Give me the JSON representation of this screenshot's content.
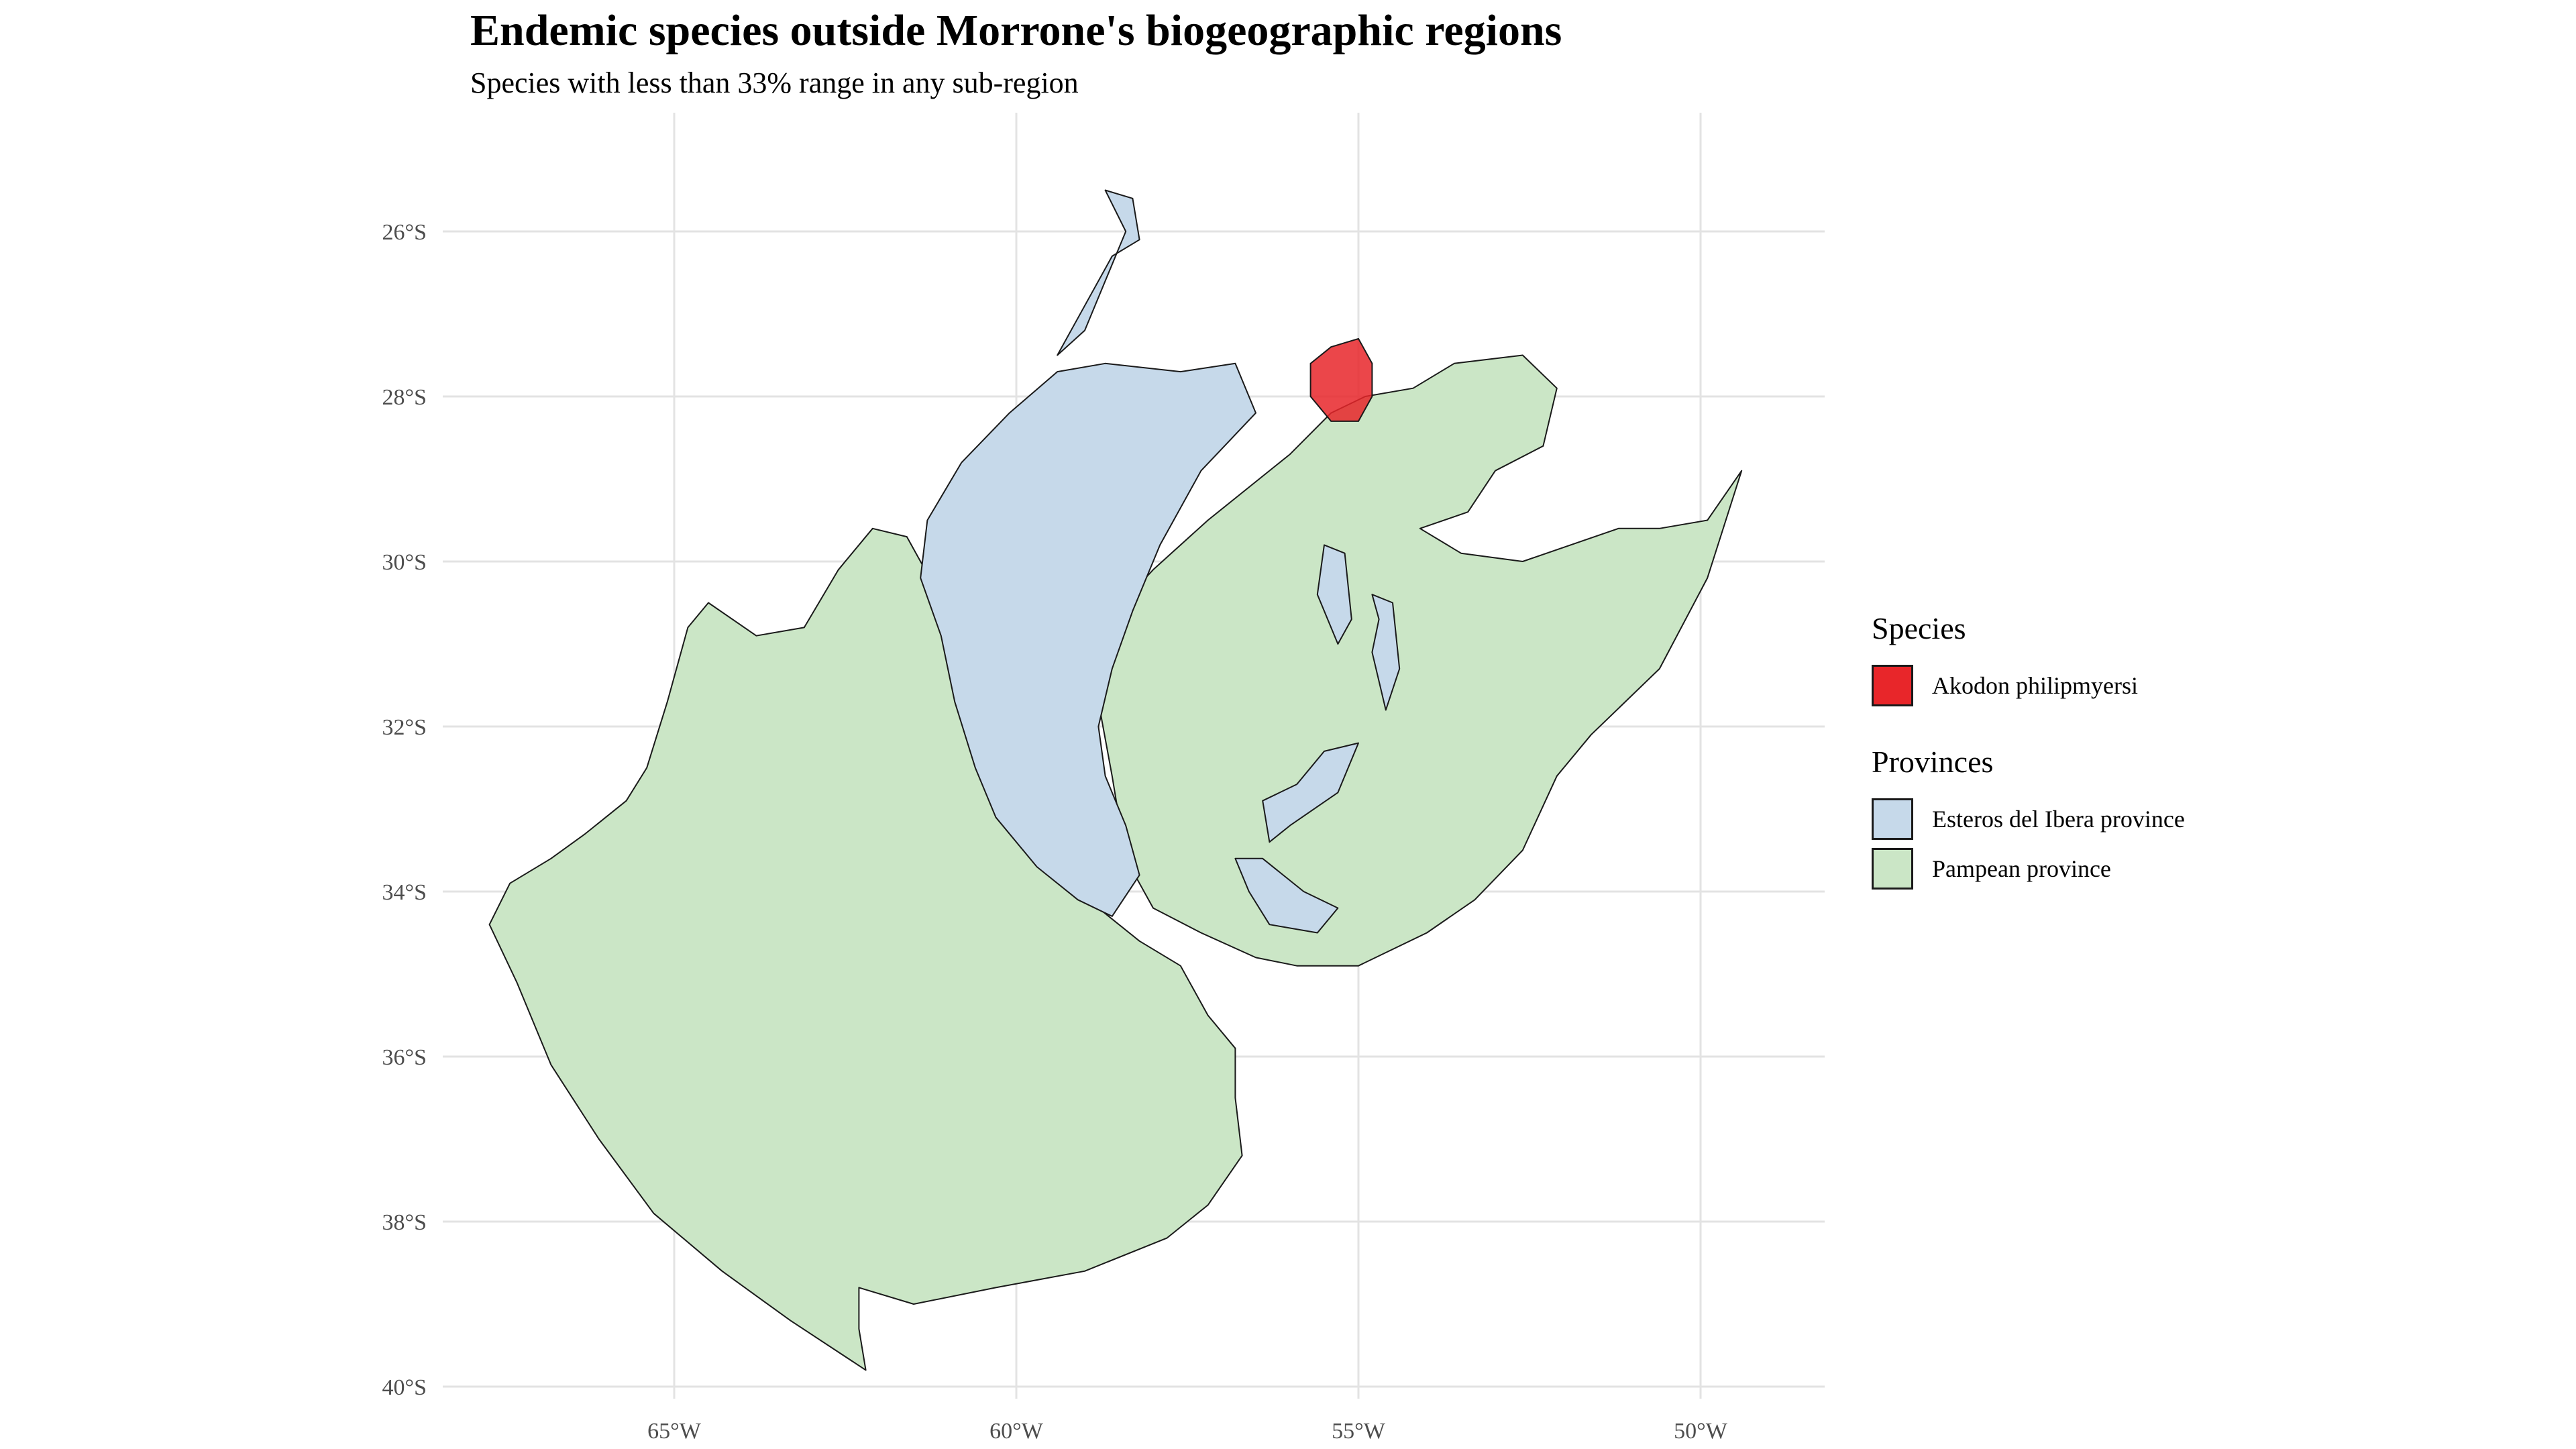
{
  "title": "Endemic species outside Morrone's biogeographic regions",
  "subtitle": "Species with less than 33% range in any sub-region",
  "colors": {
    "species_fill": "#e8262a",
    "ibera_fill": "#c6d9ea",
    "pampean_fill": "#cbe6c6",
    "outline": "#1a1a1a",
    "grid": "#e3e3e3",
    "tick_text": "#4d4d4d"
  },
  "legend": {
    "species_title": "Species",
    "species_items": [
      {
        "label": "Akodon philipmyersi",
        "color": "#e8262a"
      }
    ],
    "provinces_title": "Provinces",
    "provinces_items": [
      {
        "label": "Esteros del Ibera province",
        "color": "#c6d9ea"
      },
      {
        "label": "Pampean province",
        "color": "#cbe6c6"
      }
    ]
  },
  "map": {
    "projection": "equirectangular",
    "lon_range": [
      -68,
      -48.3
    ],
    "lat_range": [
      -40.3,
      -24.6
    ],
    "lon_ticks": [
      {
        "value": -65,
        "label": "65°W"
      },
      {
        "value": -60,
        "label": "60°W"
      },
      {
        "value": -55,
        "label": "55°W"
      },
      {
        "value": -50,
        "label": "50°W"
      }
    ],
    "lat_ticks": [
      {
        "value": -26,
        "label": "26°S"
      },
      {
        "value": -28,
        "label": "28°S"
      },
      {
        "value": -30,
        "label": "30°S"
      },
      {
        "value": -32,
        "label": "32°S"
      },
      {
        "value": -34,
        "label": "34°S"
      },
      {
        "value": -36,
        "label": "36°S"
      },
      {
        "value": -38,
        "label": "38°S"
      },
      {
        "value": -40,
        "label": "40°S"
      }
    ],
    "grid": true
  },
  "chart_data": {
    "type": "map",
    "title": "Endemic species outside Morrone's biogeographic regions",
    "subtitle": "Species with less than 33% range in any sub-region",
    "legend_position": "right",
    "layers": [
      {
        "name": "Pampean province",
        "kind": "province",
        "color": "#cbe6c6",
        "polygons": [
          [
            [
              -62.1,
              -29.6
            ],
            [
              -61.6,
              -29.7
            ],
            [
              -61.2,
              -30.3
            ],
            [
              -60.9,
              -30.9
            ],
            [
              -60.8,
              -31.5
            ],
            [
              -60.5,
              -32.3
            ],
            [
              -60.2,
              -32.9
            ],
            [
              -59.6,
              -33.5
            ],
            [
              -58.8,
              -34.2
            ],
            [
              -58.2,
              -34.6
            ],
            [
              -57.6,
              -34.9
            ],
            [
              -57.2,
              -35.5
            ],
            [
              -56.8,
              -35.9
            ],
            [
              -56.8,
              -36.5
            ],
            [
              -56.7,
              -37.2
            ],
            [
              -57.2,
              -37.8
            ],
            [
              -57.8,
              -38.2
            ],
            [
              -59.0,
              -38.6
            ],
            [
              -60.3,
              -38.8
            ],
            [
              -61.5,
              -39.0
            ],
            [
              -62.3,
              -38.8
            ],
            [
              -62.3,
              -39.3
            ],
            [
              -62.2,
              -39.8
            ],
            [
              -63.3,
              -39.2
            ],
            [
              -64.3,
              -38.6
            ],
            [
              -65.3,
              -37.9
            ],
            [
              -66.1,
              -37.0
            ],
            [
              -66.8,
              -36.1
            ],
            [
              -67.3,
              -35.1
            ],
            [
              -67.7,
              -34.4
            ],
            [
              -67.4,
              -33.9
            ],
            [
              -66.8,
              -33.6
            ],
            [
              -66.3,
              -33.3
            ],
            [
              -65.7,
              -32.9
            ],
            [
              -65.4,
              -32.5
            ],
            [
              -65.1,
              -31.7
            ],
            [
              -64.8,
              -30.8
            ],
            [
              -64.5,
              -30.5
            ],
            [
              -63.8,
              -30.9
            ],
            [
              -63.1,
              -30.8
            ],
            [
              -62.6,
              -30.1
            ]
          ],
          [
            [
              -56.0,
              -28.7
            ],
            [
              -55.4,
              -28.2
            ],
            [
              -54.9,
              -28.0
            ],
            [
              -54.2,
              -27.9
            ],
            [
              -53.6,
              -27.6
            ],
            [
              -52.6,
              -27.5
            ],
            [
              -52.1,
              -27.9
            ],
            [
              -52.3,
              -28.6
            ],
            [
              -53.0,
              -28.9
            ],
            [
              -53.4,
              -29.4
            ],
            [
              -54.1,
              -29.6
            ],
            [
              -53.5,
              -29.9
            ],
            [
              -52.6,
              -30.0
            ],
            [
              -51.2,
              -29.6
            ],
            [
              -50.6,
              -29.6
            ],
            [
              -49.9,
              -29.5
            ],
            [
              -49.4,
              -28.9
            ],
            [
              -49.9,
              -30.2
            ],
            [
              -50.6,
              -31.3
            ],
            [
              -51.6,
              -32.1
            ],
            [
              -52.1,
              -32.6
            ],
            [
              -52.6,
              -33.5
            ],
            [
              -53.3,
              -34.1
            ],
            [
              -54.0,
              -34.5
            ],
            [
              -55.0,
              -34.9
            ],
            [
              -55.9,
              -34.9
            ],
            [
              -56.5,
              -34.8
            ],
            [
              -57.3,
              -34.5
            ],
            [
              -58.0,
              -34.2
            ],
            [
              -58.4,
              -33.6
            ],
            [
              -58.6,
              -32.6
            ],
            [
              -58.8,
              -31.7
            ],
            [
              -58.9,
              -30.9
            ],
            [
              -58.0,
              -30.1
            ],
            [
              -57.2,
              -29.5
            ]
          ]
        ]
      },
      {
        "name": "Esteros del Ibera province",
        "kind": "province",
        "color": "#c6d9ea",
        "polygons": [
          [
            [
              -59.4,
              -27.7
            ],
            [
              -58.7,
              -27.6
            ],
            [
              -57.6,
              -27.7
            ],
            [
              -56.8,
              -27.6
            ],
            [
              -56.5,
              -28.2
            ],
            [
              -57.3,
              -28.9
            ],
            [
              -57.9,
              -29.8
            ],
            [
              -58.3,
              -30.6
            ],
            [
              -58.6,
              -31.3
            ],
            [
              -58.8,
              -32.0
            ],
            [
              -58.7,
              -32.6
            ],
            [
              -58.4,
              -33.2
            ],
            [
              -58.2,
              -33.8
            ],
            [
              -58.6,
              -34.3
            ],
            [
              -59.1,
              -34.1
            ],
            [
              -59.7,
              -33.7
            ],
            [
              -60.3,
              -33.1
            ],
            [
              -60.6,
              -32.5
            ],
            [
              -60.9,
              -31.7
            ],
            [
              -61.1,
              -30.9
            ],
            [
              -61.4,
              -30.2
            ],
            [
              -61.3,
              -29.5
            ],
            [
              -60.8,
              -28.8
            ],
            [
              -60.1,
              -28.2
            ]
          ],
          [
            [
              -58.7,
              -25.5
            ],
            [
              -58.3,
              -25.6
            ],
            [
              -58.2,
              -26.1
            ],
            [
              -58.6,
              -26.3
            ],
            [
              -59.0,
              -26.9
            ],
            [
              -59.4,
              -27.5
            ],
            [
              -59.0,
              -27.2
            ],
            [
              -58.7,
              -26.6
            ],
            [
              -58.4,
              -26.0
            ]
          ],
          [
            [
              -54.8,
              -30.4
            ],
            [
              -54.5,
              -30.5
            ],
            [
              -54.4,
              -31.3
            ],
            [
              -54.6,
              -31.8
            ],
            [
              -54.8,
              -31.1
            ],
            [
              -54.7,
              -30.7
            ]
          ],
          [
            [
              -55.5,
              -29.8
            ],
            [
              -55.2,
              -29.9
            ],
            [
              -55.1,
              -30.7
            ],
            [
              -55.3,
              -31.0
            ],
            [
              -55.6,
              -30.4
            ]
          ],
          [
            [
              -56.8,
              -33.6
            ],
            [
              -56.4,
              -33.6
            ],
            [
              -55.8,
              -34.0
            ],
            [
              -55.3,
              -34.2
            ],
            [
              -55.6,
              -34.5
            ],
            [
              -56.3,
              -34.4
            ],
            [
              -56.6,
              -34.0
            ]
          ],
          [
            [
              -55.5,
              -32.3
            ],
            [
              -55.0,
              -32.2
            ],
            [
              -55.3,
              -32.8
            ],
            [
              -56.0,
              -33.2
            ],
            [
              -56.3,
              -33.4
            ],
            [
              -56.4,
              -32.9
            ],
            [
              -55.9,
              -32.7
            ]
          ]
        ]
      }
    ],
    "species": [
      {
        "name": "Akodon philipmyersi",
        "color": "#e8262a",
        "polygon": [
          [
            -55.4,
            -27.4
          ],
          [
            -55.0,
            -27.3
          ],
          [
            -54.8,
            -27.6
          ],
          [
            -54.8,
            -28.0
          ],
          [
            -55.0,
            -28.3
          ],
          [
            -55.4,
            -28.3
          ],
          [
            -55.7,
            -28.0
          ],
          [
            -55.7,
            -27.6
          ]
        ]
      }
    ]
  }
}
